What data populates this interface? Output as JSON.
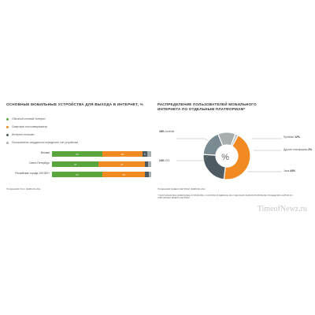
{
  "colors": {
    "green": "#5aa63c",
    "orange": "#f28a24",
    "dark": "#4f5b62",
    "gray": "#a8adb0",
    "blue_gray": "#7a8a92"
  },
  "left": {
    "title": "ОСНОВНЫЕ МОБИЛЬНЫЕ УСТРОЙСТВА ДЛЯ ВЫХОДА В ИНТЕРНЕТ, %",
    "legend": [
      {
        "label": "Обычный сотовый телефон",
        "color": "#5aa63c"
      },
      {
        "label": "Смартфон или коммуникатор",
        "color": "#f28a24"
      },
      {
        "label": "Интернет-планшет",
        "color": "#4f5b62"
      },
      {
        "label": "Пользователь затруднился определить тип устройства",
        "color": "#a8adb0"
      }
    ],
    "source": "ПО ДАННЫМ ГОСК, ФЕВРАЛЬ 2011"
  },
  "right": {
    "title": "РАСПРЕДЕЛЕНИЕ ПОЛЬЗОВАТЕЛЕЙ МОБИЛЬНОГО ИНТЕРНЕТА ПО ОТДЕЛЬНЫМ ПЛАТФОРМАМ*",
    "center_symbol": "%",
    "labels": {
      "android": {
        "pct": "18%",
        "name": "Android"
      },
      "symbian": {
        "name": "Symbian",
        "pct": "12%"
      },
      "other": {
        "name": "Другие платформы",
        "pct": "2%"
      },
      "ios": {
        "pct": "24%",
        "name": "iOS"
      },
      "java": {
        "name": "Java",
        "pct": "44%"
      }
    },
    "source": "ПО ДАННЫМ ЯНДЕКС.МЕТРИКИ, ФЕВРАЛЬ 2011",
    "footnote": "* ПОЛУЧАТЕЛИ ВСЕ МОБИЛЬНЫЕ УСТРОЙСТВА, С КОТОРЫХ В ФЕВРАЛЕ 2011 ГОДА БЫЛИ ЗАРЕГИСТРИРОВАНЫ ПОСЕЩЕНИЯ САЙТОВ СО СЧЁТЧИКАМИ ЯНДЕКС.МЕТРИКИ."
  },
  "watermark": "TimeofNewz.ru",
  "chart_data": [
    {
      "type": "bar",
      "orientation": "horizontal",
      "stacked": true,
      "categories": [
        "Москва",
        "Санкт-Петербург",
        "Российские города 100 000+"
      ],
      "series": [
        {
          "name": "Обычный сотовый телефон",
          "values": [
            51,
            47,
            51
          ]
        },
        {
          "name": "Смартфон или коммуникатор",
          "values": [
            40,
            47,
            43
          ]
        },
        {
          "name": "Интернет-планшет",
          "values": [
            5,
            3,
            4
          ]
        },
        {
          "name": "Пользователь затруднился определить тип устройства",
          "values": [
            4,
            3,
            2
          ]
        }
      ],
      "labels_shown": [
        [
          "51",
          "40",
          "5",
          ""
        ],
        [
          "47",
          "47",
          "",
          ""
        ],
        [
          "51",
          "43",
          "",
          ""
        ]
      ]
    },
    {
      "type": "pie",
      "donut": true,
      "title": "РАСПРЕДЕЛЕНИЕ ПОЛЬЗОВАТЕЛЕЙ МОБИЛЬНОГО ИНТЕРНЕТА ПО ОТДЕЛЬНЫМ ПЛАТФОРМАМ*",
      "categories": [
        "Java",
        "iOS",
        "Android",
        "Symbian",
        "Другие платформы"
      ],
      "values": [
        44,
        24,
        18,
        12,
        2
      ]
    }
  ]
}
